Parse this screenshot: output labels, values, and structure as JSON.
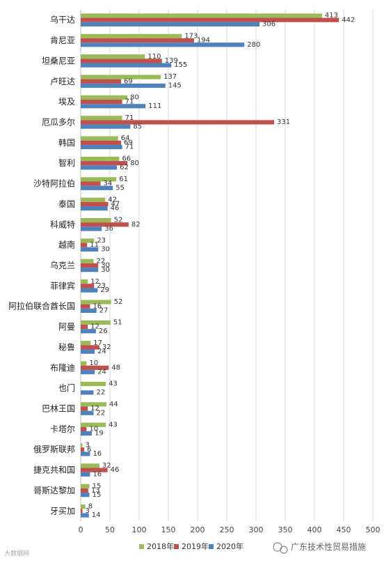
{
  "chart_data": {
    "type": "bar",
    "orientation": "horizontal",
    "categories": [
      "乌干达",
      "肯尼亚",
      "坦桑尼亚",
      "卢旺达",
      "埃及",
      "厄瓜多尔",
      "韩国",
      "智利",
      "沙特阿拉伯",
      "泰国",
      "科威特",
      "越南",
      "乌克兰",
      "菲律宾",
      "阿拉伯联合酋长国",
      "阿曼",
      "秘鲁",
      "布隆迪",
      "也门",
      "巴林王国",
      "卡塔尔",
      "俄罗斯联邦",
      "捷克共和国",
      "哥斯达黎加",
      "牙买加"
    ],
    "series": [
      {
        "name": "2018年",
        "color": "#9BBB59",
        "values": [
          413,
          173,
          110,
          137,
          80,
          71,
          64,
          66,
          61,
          42,
          52,
          23,
          22,
          12,
          52,
          51,
          17,
          10,
          43,
          44,
          43,
          3,
          32,
          15,
          8
        ]
      },
      {
        "name": "2019年",
        "color": "#C0504D",
        "values": [
          442,
          194,
          139,
          69,
          71,
          331,
          69,
          80,
          34,
          47,
          82,
          11,
          30,
          23,
          16,
          12,
          32,
          48,
          null,
          12,
          10,
          6,
          46,
          13,
          3
        ]
      },
      {
        "name": "2020年",
        "color": "#4F81BD",
        "values": [
          306,
          280,
          155,
          145,
          111,
          85,
          71,
          62,
          55,
          46,
          36,
          30,
          30,
          29,
          27,
          26,
          24,
          24,
          22,
          22,
          19,
          16,
          16,
          15,
          14
        ]
      }
    ],
    "xlim": [
      0,
      500
    ],
    "xticks": [
      0,
      50,
      100,
      150,
      200,
      250,
      300,
      350,
      400,
      450,
      500
    ],
    "grid": true,
    "legend_position": "bottom"
  },
  "watermark": {
    "text": "广东技术性贸易措施",
    "small_text": "大数据网"
  }
}
